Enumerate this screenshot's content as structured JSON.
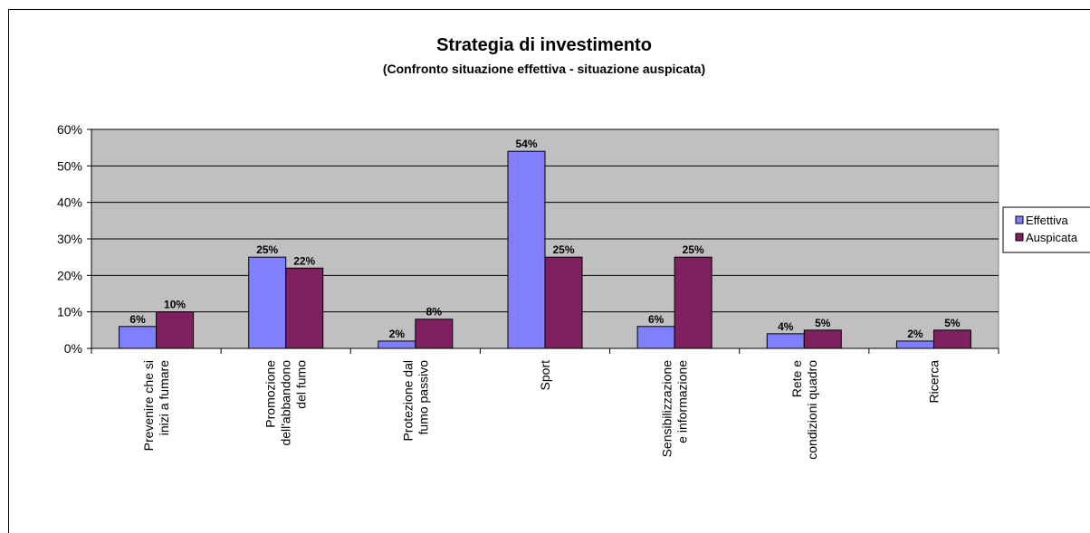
{
  "chart_data": {
    "type": "bar",
    "title": "Strategia di investimento",
    "subtitle": "(Confronto situazione effettiva - situazione auspicata)",
    "categories": [
      [
        "Prevenire che si",
        "inizi a fumare"
      ],
      [
        "Promozione",
        "dell'abbandono",
        "del fumo"
      ],
      [
        "Protezione dal",
        "fumo passivo"
      ],
      [
        "Sport"
      ],
      [
        "Sensibilizzazione",
        "e informazione"
      ],
      [
        "Rete e",
        "condizioni quadro"
      ],
      [
        "Ricerca"
      ]
    ],
    "series": [
      {
        "name": "Effettiva",
        "values": [
          6,
          25,
          2,
          54,
          6,
          4,
          2
        ],
        "labels": [
          "6%",
          "25%",
          "2%",
          "54%",
          "6%",
          "4%",
          "2%"
        ],
        "color": "#8080FF"
      },
      {
        "name": "Auspicata",
        "values": [
          10,
          22,
          8,
          25,
          25,
          5,
          5
        ],
        "labels": [
          "10%",
          "22%",
          "8%",
          "25%",
          "25%",
          "5%",
          "5%"
        ],
        "color": "#802060"
      }
    ],
    "ylim": [
      0,
      60
    ],
    "yticks": [
      "0%",
      "10%",
      "20%",
      "30%",
      "40%",
      "50%",
      "60%"
    ],
    "plot_background": "#C0C0C0",
    "grid": true,
    "legend_position": "right"
  }
}
